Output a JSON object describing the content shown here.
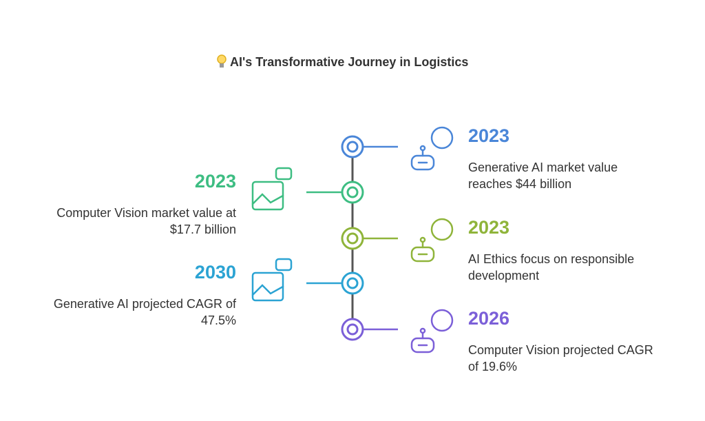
{
  "header": {
    "title": "AI's Transformative Journey in Logistics"
  },
  "timeline": {
    "items": [
      {
        "year": "2023",
        "lines": [
          "Generative AI market value",
          "reaches $44 billion"
        ],
        "color": "#4a86d8"
      },
      {
        "year": "2023",
        "lines": [
          "Computer Vision market value at",
          "$17.7 billion"
        ],
        "color": "#3dbd82"
      },
      {
        "year": "2023",
        "lines": [
          "AI Ethics focus on responsible",
          "development"
        ],
        "color": "#8fb43a"
      },
      {
        "year": "2030",
        "lines": [
          "Generative AI projected CAGR of",
          "47.5%"
        ],
        "color": "#2ba3d3"
      },
      {
        "year": "2026",
        "lines": [
          "Computer Vision projected CAGR",
          "of 19.6%"
        ],
        "color": "#7b5fd8"
      }
    ]
  }
}
